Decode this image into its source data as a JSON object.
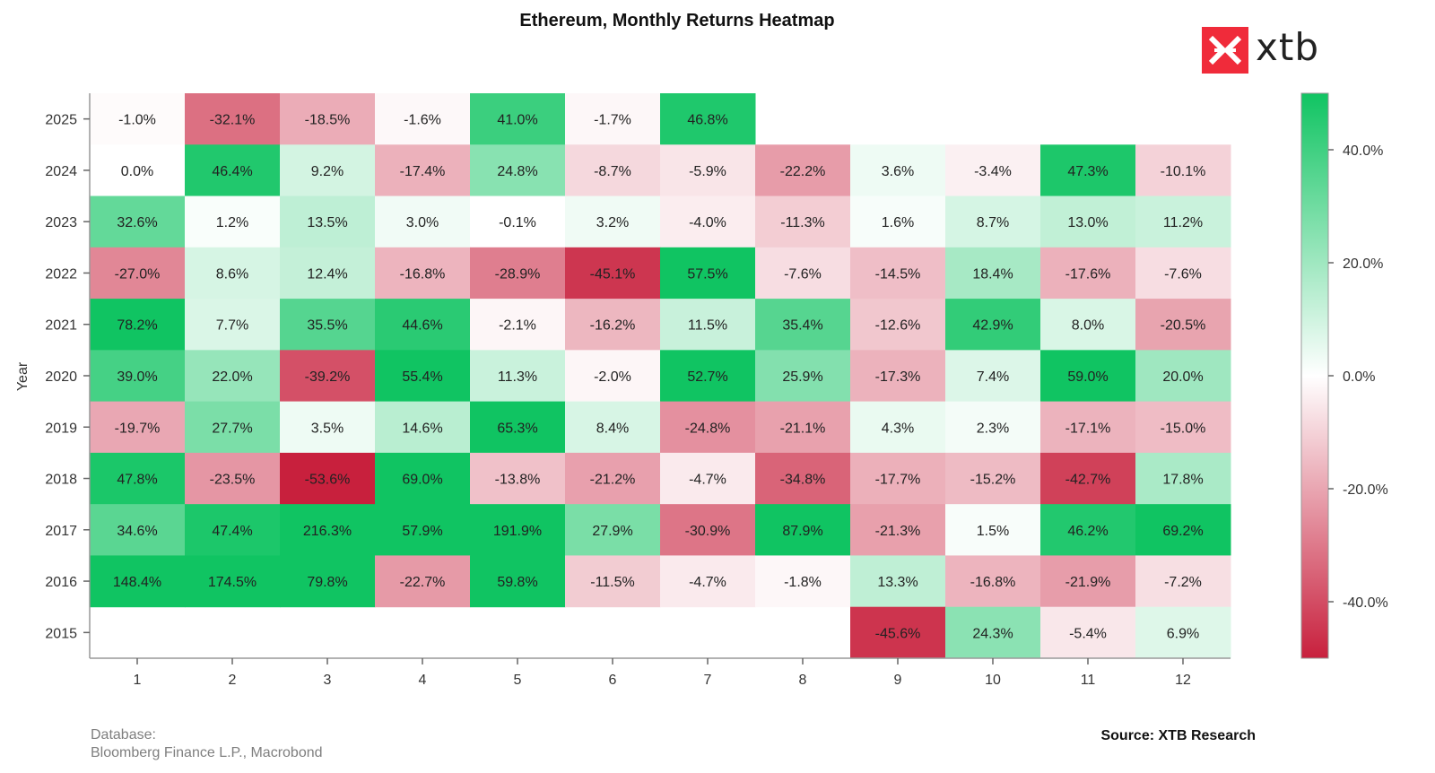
{
  "chart_data": {
    "type": "heatmap",
    "title": "Ethereum, Monthly Returns Heatmap",
    "ylabel": "Year",
    "xlabel": "",
    "x": [
      "1",
      "2",
      "3",
      "4",
      "5",
      "6",
      "7",
      "8",
      "9",
      "10",
      "11",
      "12"
    ],
    "y": [
      "2025",
      "2024",
      "2023",
      "2022",
      "2021",
      "2020",
      "2019",
      "2018",
      "2017",
      "2016",
      "2015"
    ],
    "values": [
      [
        -1.0,
        -32.1,
        -18.5,
        -1.6,
        41.0,
        -1.7,
        46.8,
        null,
        null,
        null,
        null,
        null
      ],
      [
        0.0,
        46.4,
        9.2,
        -17.4,
        24.8,
        -8.7,
        -5.9,
        -22.2,
        3.6,
        -3.4,
        47.3,
        -10.1
      ],
      [
        32.6,
        1.2,
        13.5,
        3.0,
        -0.1,
        3.2,
        -4.0,
        -11.3,
        1.6,
        8.7,
        13.0,
        11.2
      ],
      [
        -27.0,
        8.6,
        12.4,
        -16.8,
        -28.9,
        -45.1,
        57.5,
        -7.6,
        -14.5,
        18.4,
        -17.6,
        -7.6
      ],
      [
        78.2,
        7.7,
        35.5,
        44.6,
        -2.1,
        -16.2,
        11.5,
        35.4,
        -12.6,
        42.9,
        8.0,
        -20.5
      ],
      [
        39.0,
        22.0,
        -39.2,
        55.4,
        11.3,
        -2.0,
        52.7,
        25.9,
        -17.3,
        7.4,
        59.0,
        20.0
      ],
      [
        -19.7,
        27.7,
        3.5,
        14.6,
        65.3,
        8.4,
        -24.8,
        -21.1,
        4.3,
        2.3,
        -17.1,
        -15.0
      ],
      [
        47.8,
        -23.5,
        -53.6,
        69.0,
        -13.8,
        -21.2,
        -4.7,
        -34.8,
        -17.7,
        -15.2,
        -42.7,
        17.8
      ],
      [
        34.6,
        47.4,
        216.3,
        57.9,
        191.9,
        27.9,
        -30.9,
        87.9,
        -21.3,
        1.5,
        46.2,
        69.2
      ],
      [
        148.4,
        174.5,
        79.8,
        -22.7,
        59.8,
        -11.5,
        -4.7,
        -1.8,
        13.3,
        -16.8,
        -21.9,
        -7.2
      ],
      [
        null,
        null,
        null,
        null,
        null,
        null,
        null,
        null,
        -45.6,
        24.3,
        -5.4,
        6.9
      ]
    ],
    "value_suffix": "%",
    "color_scale": {
      "min": -50,
      "max": 50,
      "low": "#c8203d",
      "mid": "#ffffff",
      "high": "#10c462"
    },
    "colorbar_ticks": [
      40,
      20,
      0,
      -20,
      -40
    ],
    "colorbar_tick_labels": [
      "40.0%",
      "20.0%",
      "0.0%",
      "-20.0%",
      "-40.0%"
    ]
  },
  "logo": {
    "text": "xtb",
    "color": "#f02b3a"
  },
  "footer": {
    "database_label": "Database:",
    "database_value": "Bloomberg Finance L.P., Macrobond",
    "source": "Source: XTB Research"
  }
}
